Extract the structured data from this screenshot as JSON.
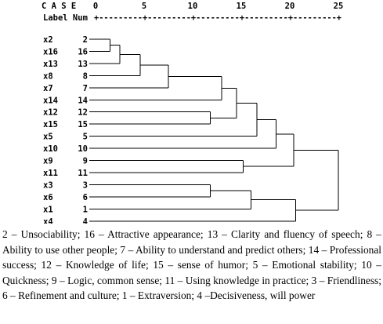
{
  "header": {
    "case_label": "C A S E",
    "label_num": "Label Num",
    "scale_ticks": [
      "0",
      "5",
      "10",
      "15",
      "20",
      "25"
    ],
    "ruler": "+---------+---------+---------+---------+---------+"
  },
  "rows": [
    {
      "label": "x2",
      "num": "2"
    },
    {
      "label": "x16",
      "num": "16"
    },
    {
      "label": "x13",
      "num": "13"
    },
    {
      "label": "x8",
      "num": "8"
    },
    {
      "label": "x7",
      "num": "7"
    },
    {
      "label": "x14",
      "num": "14"
    },
    {
      "label": "x12",
      "num": "12"
    },
    {
      "label": "x15",
      "num": "15"
    },
    {
      "label": "x5",
      "num": "5"
    },
    {
      "label": "x10",
      "num": "10"
    },
    {
      "label": "x9",
      "num": "9"
    },
    {
      "label": "x11",
      "num": "11"
    },
    {
      "label": "x3",
      "num": "3"
    },
    {
      "label": "x6",
      "num": "6"
    },
    {
      "label": "x1",
      "num": "1"
    },
    {
      "label": "x4",
      "num": "4"
    }
  ],
  "merges": [
    {
      "a": 0,
      "b": 1,
      "dist": 1.5
    },
    {
      "a": 0,
      "b": 2,
      "dist": 2.5
    },
    {
      "a": 0,
      "b": 3,
      "dist": 4.6
    },
    {
      "a": 0,
      "b": 4,
      "dist": 7.5
    },
    {
      "a": 6,
      "b": 7,
      "dist": 11.8
    },
    {
      "a": 0,
      "b": 5,
      "dist": 13.0
    },
    {
      "a": 0,
      "b": 6,
      "dist": 14.5
    },
    {
      "a": 10,
      "b": 11,
      "dist": 15.2
    },
    {
      "a": 0,
      "b": 8,
      "dist": 16.6
    },
    {
      "a": 12,
      "b": 13,
      "dist": 11.8
    },
    {
      "a": 0,
      "b": 9,
      "dist": 18.6
    },
    {
      "a": 12,
      "b": 14,
      "dist": 16.0
    },
    {
      "a": 0,
      "b": 10,
      "dist": 20.4
    },
    {
      "a": 12,
      "b": 15,
      "dist": 20.6
    },
    {
      "a": 0,
      "b": 12,
      "dist": 25.0
    }
  ],
  "caption": "2 – Unsociability; 16 – Attractive appearance; 13 – Clarity and fluency of speech; 8 – Ability to use other people; 7 – Ability to understand and predict others; 14 – Professional success; 12 – Knowledge of life; 15 – sense of humor; 5 – Emotional stability; 10 – Quickness; 9 – Logic, common sense; 11 – Using knowledge in practice; 3 – Friendliness; 6 – Refinement and culture; 1 – Extraversion; 4 –Decisiveness, will power"
}
